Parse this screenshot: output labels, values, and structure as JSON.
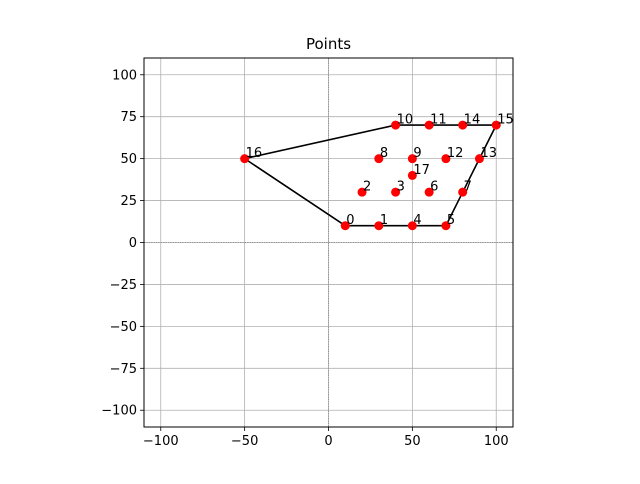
{
  "chart_data": {
    "type": "scatter",
    "title": "Points",
    "xlabel": "",
    "ylabel": "",
    "xlim": [
      -110,
      110
    ],
    "ylim": [
      -110,
      110
    ],
    "xticks": [
      -100,
      -50,
      0,
      50,
      100
    ],
    "yticks": [
      -100,
      -75,
      -50,
      -25,
      0,
      25,
      50,
      75,
      100
    ],
    "xtick_labels": [
      "−100",
      "−50",
      "0",
      "50",
      "100"
    ],
    "ytick_labels": [
      "−100",
      "−75",
      "−50",
      "−25",
      "0",
      "25",
      "50",
      "75",
      "100"
    ],
    "grid": true,
    "axis_lines_at_zero": true,
    "point_color": "#ff0000",
    "edge_color": "#000000",
    "points": [
      {
        "label": "0",
        "x": 10,
        "y": 10
      },
      {
        "label": "1",
        "x": 30,
        "y": 10
      },
      {
        "label": "2",
        "x": 20,
        "y": 30
      },
      {
        "label": "3",
        "x": 40,
        "y": 30
      },
      {
        "label": "4",
        "x": 50,
        "y": 10
      },
      {
        "label": "5",
        "x": 70,
        "y": 10
      },
      {
        "label": "6",
        "x": 60,
        "y": 30
      },
      {
        "label": "7",
        "x": 80,
        "y": 30
      },
      {
        "label": "8",
        "x": 30,
        "y": 50
      },
      {
        "label": "9",
        "x": 50,
        "y": 50
      },
      {
        "label": "10",
        "x": 40,
        "y": 70
      },
      {
        "label": "11",
        "x": 60,
        "y": 70
      },
      {
        "label": "12",
        "x": 70,
        "y": 50
      },
      {
        "label": "13",
        "x": 90,
        "y": 50
      },
      {
        "label": "14",
        "x": 80,
        "y": 70
      },
      {
        "label": "15",
        "x": 100,
        "y": 70
      },
      {
        "label": "16",
        "x": -50,
        "y": 50
      },
      {
        "label": "17",
        "x": 50,
        "y": 40
      }
    ],
    "hull": [
      0,
      1,
      4,
      5,
      7,
      13,
      15,
      14,
      11,
      10,
      16,
      0
    ]
  }
}
